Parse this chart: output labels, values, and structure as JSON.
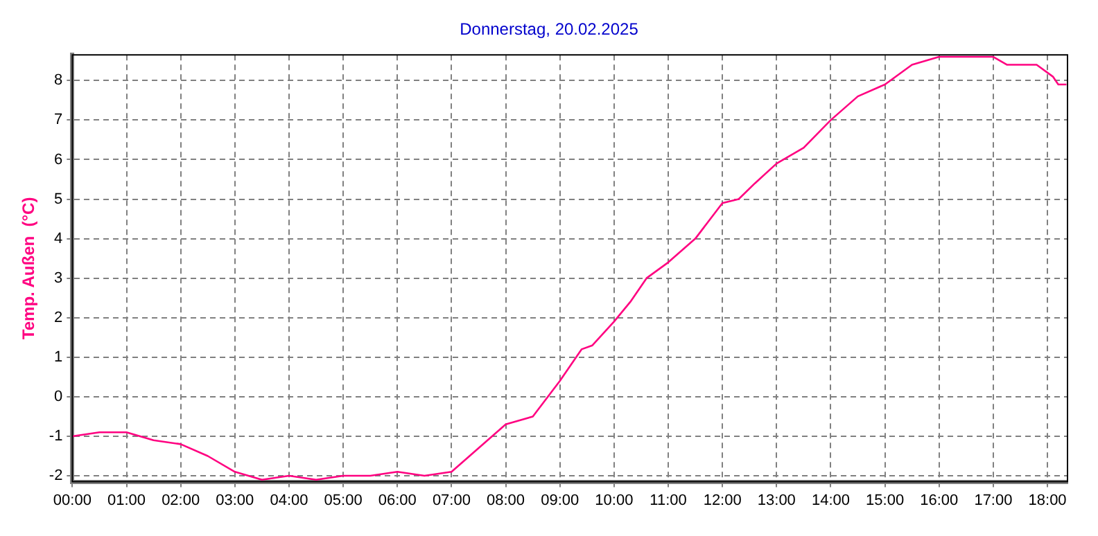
{
  "chart_data": {
    "type": "line",
    "title": "Donnerstag, 20.02.2025",
    "ylabel": "Temp. Außen  (°C)",
    "x": [
      0,
      0.5,
      1,
      1.5,
      2,
      2.5,
      3,
      3.5,
      4,
      4.5,
      5,
      5.5,
      6,
      6.5,
      7,
      7.5,
      8,
      8.5,
      9,
      9.4,
      9.6,
      10,
      10.3,
      10.6,
      11,
      11.5,
      12,
      12.3,
      12.6,
      13,
      13.5,
      14,
      14.5,
      15,
      15.5,
      16,
      17,
      17.25,
      17.8,
      18.1,
      18.2,
      18.35
    ],
    "series": [
      {
        "color": "#ff0080",
        "values": [
          -1.0,
          -0.9,
          -0.9,
          -1.1,
          -1.2,
          -1.5,
          -1.9,
          -2.1,
          -2.0,
          -2.1,
          -2.0,
          -2.0,
          -1.9,
          -2.0,
          -1.9,
          -1.3,
          -0.7,
          -0.5,
          0.4,
          1.2,
          1.3,
          1.9,
          2.4,
          3.0,
          3.4,
          4.0,
          4.9,
          5.0,
          5.4,
          5.9,
          6.3,
          7.0,
          7.6,
          7.9,
          8.4,
          8.6,
          8.6,
          8.4,
          8.4,
          8.1,
          7.9,
          7.9
        ]
      }
    ],
    "xlim": [
      0,
      18.37
    ],
    "xticks": [
      {
        "value": 0,
        "label": "00:00"
      },
      {
        "value": 1,
        "label": "01:00"
      },
      {
        "value": 2,
        "label": "02:00"
      },
      {
        "value": 3,
        "label": "03:00"
      },
      {
        "value": 4,
        "label": "04:00"
      },
      {
        "value": 5,
        "label": "05:00"
      },
      {
        "value": 6,
        "label": "06:00"
      },
      {
        "value": 7,
        "label": "07:00"
      },
      {
        "value": 8,
        "label": "08:00"
      },
      {
        "value": 9,
        "label": "09:00"
      },
      {
        "value": 10,
        "label": "10:00"
      },
      {
        "value": 11,
        "label": "11:00"
      },
      {
        "value": 12,
        "label": "12:00"
      },
      {
        "value": 13,
        "label": "13:00"
      },
      {
        "value": 14,
        "label": "14:00"
      },
      {
        "value": 15,
        "label": "15:00"
      },
      {
        "value": 16,
        "label": "16:00"
      },
      {
        "value": 17,
        "label": "17:00"
      },
      {
        "value": 18,
        "label": "18:00"
      }
    ],
    "ylim": [
      -2.15,
      8.65
    ],
    "yticks": [
      -2,
      -1,
      0,
      1,
      2,
      3,
      4,
      5,
      6,
      7,
      8
    ],
    "grid": true,
    "legend": false,
    "marker": "none",
    "line_style": "solid"
  }
}
